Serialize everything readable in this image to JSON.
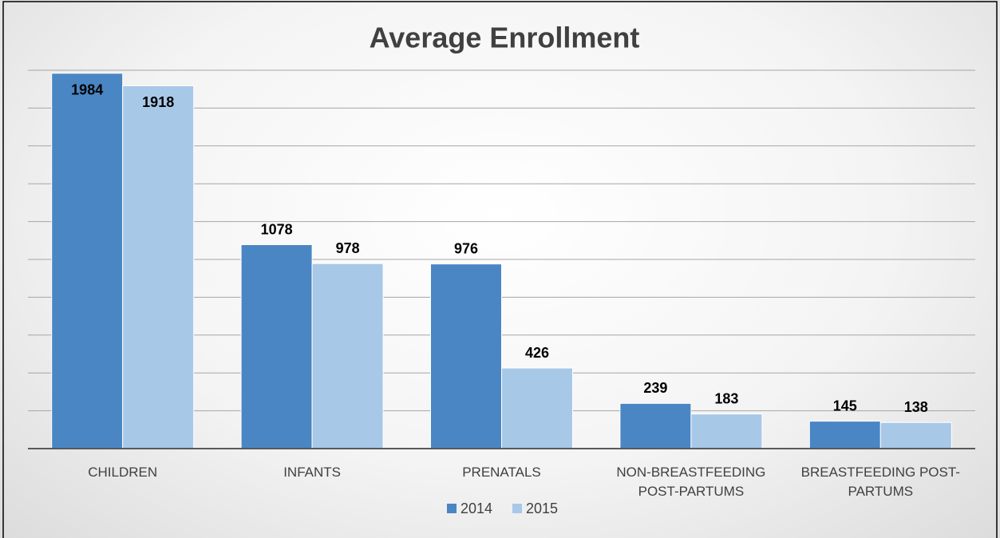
{
  "chart_data": {
    "type": "bar",
    "title": "Average Enrollment",
    "categories": [
      "CHILDREN",
      "INFANTS",
      "PRENATALS",
      "NON-BREASTFEEDING POST-PARTUMS",
      "BREASTFEEDING POST-PARTUMS"
    ],
    "series": [
      {
        "name": "2014",
        "color": "#4a86c4",
        "values": [
          1984,
          1078,
          976,
          239,
          145
        ]
      },
      {
        "name": "2015",
        "color": "#a8c8e8",
        "values": [
          1918,
          978,
          426,
          183,
          138
        ]
      }
    ],
    "ylim": [
      0,
      2000
    ],
    "yticks": [
      0,
      200,
      400,
      600,
      800,
      1000,
      1200,
      1400,
      1600,
      1800,
      2000
    ],
    "grid": true,
    "legend": "bottom"
  }
}
